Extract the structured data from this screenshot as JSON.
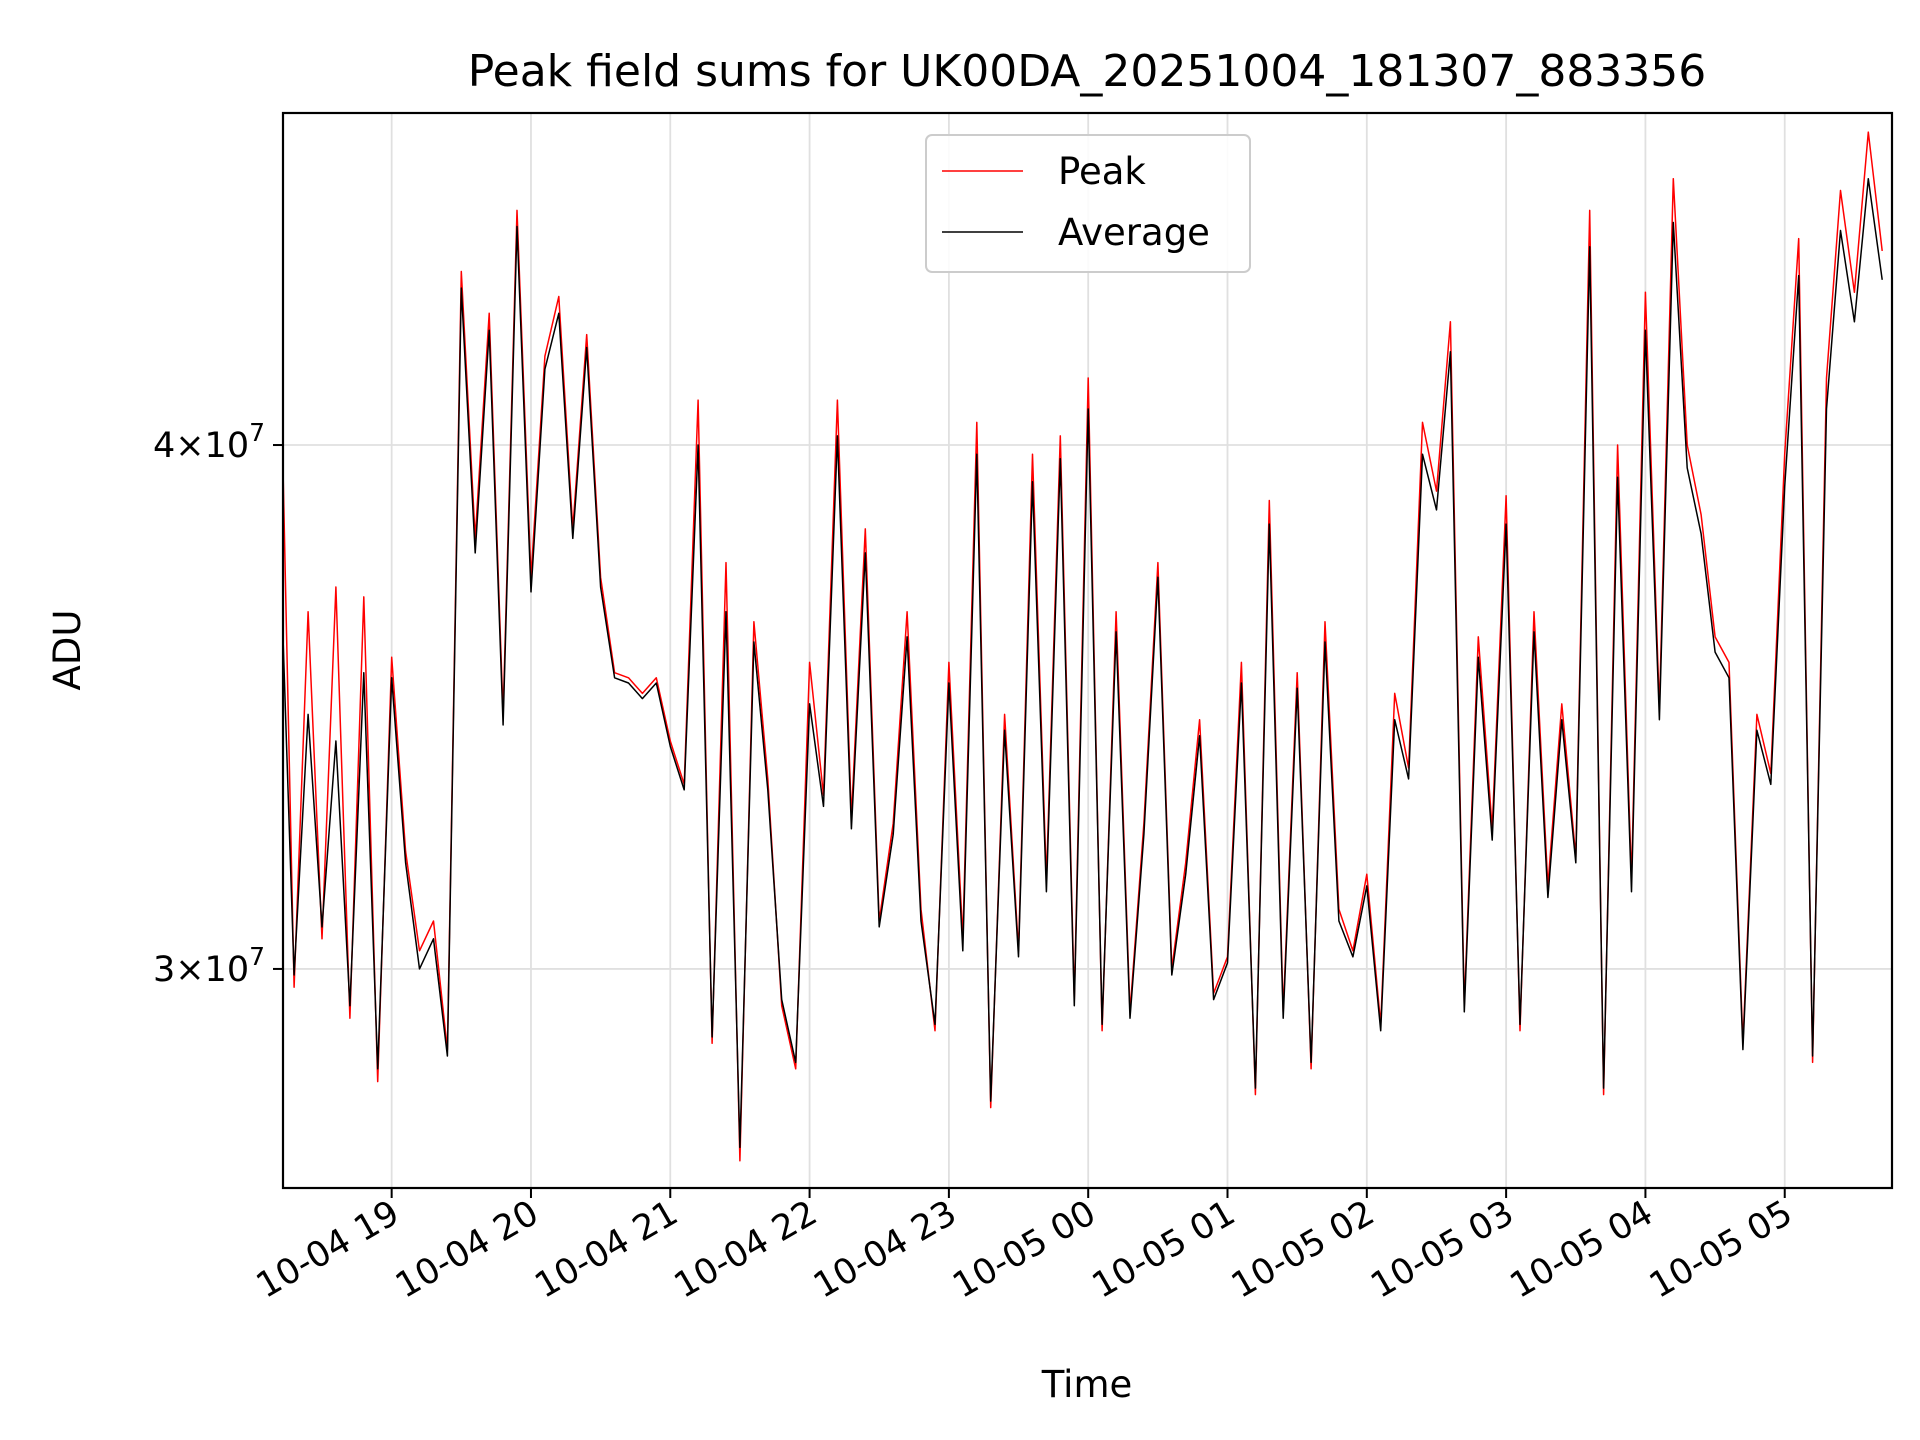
{
  "chart_data": {
    "type": "line",
    "title": "Peak field sums for UK00DA_20251004_181307_883356",
    "xlabel": "Time",
    "ylabel": "ADU",
    "yscale": "log",
    "ylim": [
      26600000,
      48000000
    ],
    "xlim_hours": [
      18.22,
      29.77
    ],
    "x_ticks": [
      {
        "hour": 19,
        "label": "10-04 19"
      },
      {
        "hour": 20,
        "label": "10-04 20"
      },
      {
        "hour": 21,
        "label": "10-04 21"
      },
      {
        "hour": 22,
        "label": "10-04 22"
      },
      {
        "hour": 23,
        "label": "10-04 23"
      },
      {
        "hour": 24,
        "label": "10-05 00"
      },
      {
        "hour": 25,
        "label": "10-05 01"
      },
      {
        "hour": 26,
        "label": "10-05 02"
      },
      {
        "hour": 27,
        "label": "10-05 03"
      },
      {
        "hour": 28,
        "label": "10-05 04"
      },
      {
        "hour": 29,
        "label": "10-05 05"
      }
    ],
    "y_ticks": [
      {
        "value": 30000000,
        "mant": "3",
        "exp": "7"
      },
      {
        "value": 40000000,
        "mant": "4",
        "exp": "7"
      }
    ],
    "grid": true,
    "legend": {
      "position": "upper center"
    },
    "series": [
      {
        "name": "Peak",
        "color": "#ff0000",
        "x_hours": [
          18.22,
          18.3,
          18.4,
          18.5,
          18.6,
          18.7,
          18.8,
          18.9,
          19.0,
          19.1,
          19.2,
          19.3,
          19.4,
          19.5,
          19.6,
          19.7,
          19.8,
          19.9,
          20.0,
          20.1,
          20.2,
          20.3,
          20.4,
          20.5,
          20.6,
          20.7,
          20.8,
          20.9,
          21.0,
          21.1,
          21.2,
          21.3,
          21.4,
          21.5,
          21.6,
          21.7,
          21.8,
          21.9,
          22.0,
          22.1,
          22.2,
          22.3,
          22.4,
          22.5,
          22.6,
          22.7,
          22.8,
          22.9,
          23.0,
          23.1,
          23.2,
          23.3,
          23.4,
          23.5,
          23.6,
          23.7,
          23.8,
          23.9,
          24.0,
          24.1,
          24.2,
          24.3,
          24.4,
          24.5,
          24.6,
          24.7,
          24.8,
          24.9,
          25.0,
          25.1,
          25.2,
          25.3,
          25.4,
          25.5,
          25.6,
          25.7,
          25.8,
          25.9,
          26.0,
          26.1,
          26.2,
          26.3,
          26.4,
          26.5,
          26.6,
          26.7,
          26.8,
          26.9,
          27.0,
          27.1,
          27.2,
          27.3,
          27.4,
          27.5,
          27.6,
          27.7,
          27.8,
          27.9,
          28.0,
          28.1,
          28.2,
          28.3,
          28.4,
          28.5,
          28.6,
          28.7,
          28.8,
          28.9,
          29.0,
          29.1,
          29.2,
          29.3,
          29.4,
          29.5,
          29.6,
          29.7
        ],
        "values": [
          39500000,
          29700000,
          36500000,
          30500000,
          37000000,
          29200000,
          36800000,
          28200000,
          35600000,
          32000000,
          30300000,
          30800000,
          28700000,
          44000000,
          38000000,
          43000000,
          34500000,
          45500000,
          37200000,
          42000000,
          43400000,
          38200000,
          42500000,
          37200000,
          35300000,
          35200000,
          34900000,
          35200000,
          34000000,
          33200000,
          41000000,
          28800000,
          37500000,
          27000000,
          36300000,
          33300000,
          29400000,
          28400000,
          35500000,
          33000000,
          41000000,
          32600000,
          38200000,
          30800000,
          32500000,
          36500000,
          31000000,
          29000000,
          35500000,
          30500000,
          40500000,
          27800000,
          34500000,
          30300000,
          39800000,
          31500000,
          40200000,
          29500000,
          41500000,
          29000000,
          36500000,
          29300000,
          32500000,
          37500000,
          30000000,
          31800000,
          34400000,
          29600000,
          30200000,
          35500000,
          28000000,
          38800000,
          29300000,
          35300000,
          28400000,
          36300000,
          31000000,
          30300000,
          31600000,
          29100000,
          34900000,
          33500000,
          40500000,
          39000000,
          42800000,
          29400000,
          36000000,
          32400000,
          38900000,
          29000000,
          36500000,
          31400000,
          34700000,
          31900000,
          45500000,
          28000000,
          40000000,
          31500000,
          43500000,
          34600000,
          46300000,
          40000000,
          38500000,
          36000000,
          35500000,
          28800000,
          34500000,
          33400000,
          39800000,
          44800000,
          28500000,
          41500000,
          46000000,
          43500000,
          47500000,
          44500000
        ]
      },
      {
        "name": "Average",
        "color": "#000000",
        "x_hours": [
          18.22,
          18.3,
          18.4,
          18.5,
          18.6,
          18.7,
          18.8,
          18.9,
          19.0,
          19.1,
          19.2,
          19.3,
          19.4,
          19.5,
          19.6,
          19.7,
          19.8,
          19.9,
          20.0,
          20.1,
          20.2,
          20.3,
          20.4,
          20.5,
          20.6,
          20.7,
          20.8,
          20.9,
          21.0,
          21.1,
          21.2,
          21.3,
          21.4,
          21.5,
          21.6,
          21.7,
          21.8,
          21.9,
          22.0,
          22.1,
          22.2,
          22.3,
          22.4,
          22.5,
          22.6,
          22.7,
          22.8,
          22.9,
          23.0,
          23.1,
          23.2,
          23.3,
          23.4,
          23.5,
          23.6,
          23.7,
          23.8,
          23.9,
          24.0,
          24.1,
          24.2,
          24.3,
          24.4,
          24.5,
          24.6,
          24.7,
          24.8,
          24.9,
          25.0,
          25.1,
          25.2,
          25.3,
          25.4,
          25.5,
          25.6,
          25.7,
          25.8,
          25.9,
          26.0,
          26.1,
          26.2,
          26.3,
          26.4,
          26.5,
          26.6,
          26.7,
          26.8,
          26.9,
          27.0,
          27.1,
          27.2,
          27.3,
          27.4,
          27.5,
          27.6,
          27.7,
          27.8,
          27.9,
          28.0,
          28.1,
          28.2,
          28.3,
          28.4,
          28.5,
          28.6,
          28.7,
          28.8,
          28.9,
          29.0,
          29.1,
          29.2,
          29.3,
          29.4,
          29.5,
          29.6,
          29.7
        ],
        "values": [
          36000000,
          29900000,
          34500000,
          30700000,
          34000000,
          29400000,
          35300000,
          28400000,
          35200000,
          31800000,
          30000000,
          30500000,
          28600000,
          43600000,
          37700000,
          42600000,
          34300000,
          45100000,
          36900000,
          41700000,
          43000000,
          38000000,
          42200000,
          37000000,
          35200000,
          35100000,
          34800000,
          35100000,
          33900000,
          33100000,
          40000000,
          28900000,
          36500000,
          27200000,
          35900000,
          33100000,
          29500000,
          28500000,
          34700000,
          32800000,
          40200000,
          32400000,
          37700000,
          30700000,
          32300000,
          36000000,
          30800000,
          29100000,
          35100000,
          30300000,
          39800000,
          27900000,
          34200000,
          30200000,
          39200000,
          31300000,
          39700000,
          29400000,
          40800000,
          29100000,
          36100000,
          29200000,
          32300000,
          37200000,
          29900000,
          31600000,
          34100000,
          29500000,
          30100000,
          35100000,
          28100000,
          38300000,
          29200000,
          35000000,
          28500000,
          35900000,
          30800000,
          30200000,
          31400000,
          29000000,
          34400000,
          33300000,
          39800000,
          38600000,
          42100000,
          29300000,
          35600000,
          32200000,
          38300000,
          29100000,
          36100000,
          31200000,
          34400000,
          31800000,
          44600000,
          28100000,
          39300000,
          31300000,
          42600000,
          34400000,
          45200000,
          39500000,
          38100000,
          35700000,
          35200000,
          28700000,
          34200000,
          33200000,
          39100000,
          43900000,
          28600000,
          40800000,
          45000000,
          42800000,
          46300000,
          43800000
        ]
      }
    ]
  }
}
